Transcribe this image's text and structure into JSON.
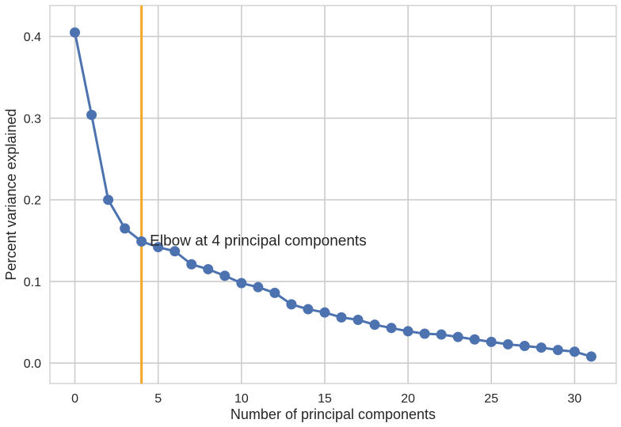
{
  "chart_data": {
    "type": "line",
    "title": "",
    "xlabel": "Number of principal components",
    "ylabel": "Percent variance explained",
    "xlim": [
      -1.5,
      32.5
    ],
    "ylim": [
      -0.025,
      0.438
    ],
    "xticks": [
      0,
      5,
      10,
      15,
      20,
      25,
      30
    ],
    "yticks": [
      0.0,
      0.1,
      0.2,
      0.3,
      0.4
    ],
    "xtick_labels": [
      "0",
      "5",
      "10",
      "15",
      "20",
      "25",
      "30"
    ],
    "ytick_labels": [
      "0.0",
      "0.1",
      "0.2",
      "0.3",
      "0.4"
    ],
    "grid": true,
    "series": [
      {
        "x": [
          0,
          1,
          2,
          3,
          4,
          5,
          6,
          7,
          8,
          9,
          10,
          11,
          12,
          13,
          14,
          15,
          16,
          17,
          18,
          19,
          20,
          21,
          22,
          23,
          24,
          25,
          26,
          27,
          28,
          29,
          30,
          31
        ],
        "values": [
          0.405,
          0.304,
          0.2,
          0.165,
          0.149,
          0.142,
          0.137,
          0.121,
          0.115,
          0.107,
          0.098,
          0.093,
          0.086,
          0.072,
          0.066,
          0.062,
          0.056,
          0.053,
          0.047,
          0.043,
          0.039,
          0.036,
          0.035,
          0.032,
          0.029,
          0.026,
          0.023,
          0.021,
          0.019,
          0.016,
          0.014,
          0.008
        ],
        "color": "#4c72b0"
      }
    ],
    "vline": {
      "x": 4,
      "color": "#f5a623"
    },
    "annotation": {
      "text": "Elbow at 4 principal components",
      "x": 4.5,
      "y": 0.15
    }
  }
}
